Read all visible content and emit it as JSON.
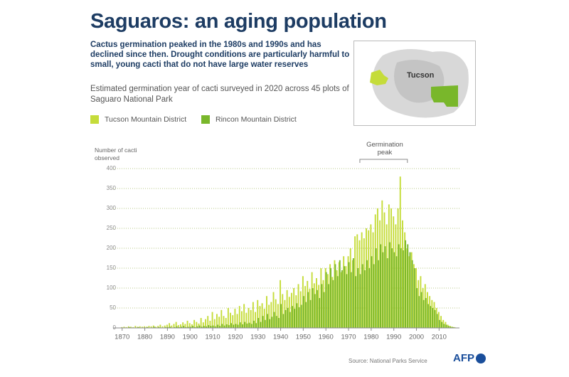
{
  "chart_data": {
    "type": "bar",
    "title": "Saguaros: an aging population",
    "subtitle": "Cactus germination peaked in the 1980s and 1990s and has declined since then. Drought conditions are particularly harmful to small, young cacti that do not have large water reserves",
    "description": "Estimated germination year of cacti surveyed in 2020 across 45 plots of Saguaro National Park",
    "y_label": "Number of cacti observed",
    "annotation": {
      "text": "Germination peak",
      "x": [
        1975,
        1996
      ]
    },
    "map_label": "Tucson",
    "source": "Source: National Parks Service",
    "credit": "AFP",
    "x": [
      1870,
      1871,
      1872,
      1873,
      1874,
      1875,
      1876,
      1877,
      1878,
      1879,
      1880,
      1881,
      1882,
      1883,
      1884,
      1885,
      1886,
      1887,
      1888,
      1889,
      1890,
      1891,
      1892,
      1893,
      1894,
      1895,
      1896,
      1897,
      1898,
      1899,
      1900,
      1901,
      1902,
      1903,
      1904,
      1905,
      1906,
      1907,
      1908,
      1909,
      1910,
      1911,
      1912,
      1913,
      1914,
      1915,
      1916,
      1917,
      1918,
      1919,
      1920,
      1921,
      1922,
      1923,
      1924,
      1925,
      1926,
      1927,
      1928,
      1929,
      1930,
      1931,
      1932,
      1933,
      1934,
      1935,
      1936,
      1937,
      1938,
      1939,
      1940,
      1941,
      1942,
      1943,
      1944,
      1945,
      1946,
      1947,
      1948,
      1949,
      1950,
      1951,
      1952,
      1953,
      1954,
      1955,
      1956,
      1957,
      1958,
      1959,
      1960,
      1961,
      1962,
      1963,
      1964,
      1965,
      1966,
      1967,
      1968,
      1969,
      1970,
      1971,
      1972,
      1973,
      1974,
      1975,
      1976,
      1977,
      1978,
      1979,
      1980,
      1981,
      1982,
      1983,
      1984,
      1985,
      1986,
      1987,
      1988,
      1989,
      1990,
      1991,
      1992,
      1993,
      1994,
      1995,
      1996,
      1997,
      1998,
      1999,
      2000,
      2001,
      2002,
      2003,
      2004,
      2005,
      2006,
      2007,
      2008,
      2009,
      2010,
      2011,
      2012,
      2013,
      2014,
      2015,
      2016,
      2017
    ],
    "series": [
      {
        "name": "Tucson Mountain District",
        "color": "#c5dc3a",
        "values": [
          2,
          3,
          2,
          4,
          3,
          2,
          5,
          3,
          4,
          3,
          4,
          3,
          5,
          4,
          6,
          3,
          5,
          8,
          4,
          6,
          8,
          12,
          6,
          10,
          15,
          7,
          9,
          14,
          10,
          18,
          12,
          9,
          20,
          15,
          11,
          25,
          14,
          22,
          30,
          18,
          40,
          22,
          35,
          28,
          45,
          30,
          25,
          50,
          38,
          32,
          48,
          35,
          55,
          42,
          60,
          38,
          50,
          45,
          65,
          40,
          70,
          55,
          62,
          48,
          80,
          58,
          65,
          90,
          72,
          60,
          120,
          85,
          70,
          95,
          78,
          88,
          100,
          82,
          110,
          92,
          130,
          105,
          118,
          98,
          140,
          112,
          125,
          108,
          150,
          120,
          150,
          135,
          160,
          128,
          170,
          145,
          165,
          140,
          180,
          155,
          180,
          200,
          170,
          230,
          235,
          220,
          240,
          225,
          250,
          245,
          260,
          240,
          285,
          300,
          270,
          320,
          290,
          260,
          310,
          300,
          280,
          260,
          300,
          380,
          270,
          240,
          200,
          180,
          190,
          160,
          150,
          120,
          130,
          100,
          110,
          90,
          80,
          70,
          65,
          50,
          40,
          30,
          20,
          15,
          8,
          5,
          3,
          2
        ]
      },
      {
        "name": "Rincon Mountain District",
        "color": "#79b72b",
        "values": [
          0,
          1,
          0,
          2,
          1,
          0,
          1,
          2,
          0,
          1,
          1,
          2,
          0,
          1,
          3,
          1,
          2,
          1,
          0,
          2,
          2,
          3,
          1,
          2,
          4,
          2,
          3,
          5,
          2,
          3,
          3,
          5,
          2,
          4,
          6,
          3,
          5,
          4,
          7,
          5,
          6,
          4,
          8,
          5,
          10,
          6,
          9,
          7,
          12,
          8,
          10,
          8,
          14,
          9,
          15,
          11,
          13,
          10,
          18,
          12,
          25,
          15,
          30,
          20,
          35,
          22,
          28,
          40,
          30,
          25,
          60,
          35,
          45,
          50,
          40,
          55,
          48,
          62,
          52,
          58,
          80,
          65,
          90,
          70,
          100,
          85,
          95,
          75,
          110,
          90,
          140,
          110,
          150,
          120,
          160,
          130,
          170,
          145,
          155,
          135,
          165,
          140,
          175,
          130,
          150,
          135,
          160,
          145,
          170,
          150,
          180,
          160,
          200,
          170,
          210,
          190,
          205,
          175,
          215,
          200,
          190,
          180,
          210,
          200,
          195,
          220,
          210,
          190,
          170,
          150,
          100,
          80,
          90,
          70,
          75,
          60,
          55,
          50,
          45,
          35,
          20,
          15,
          10,
          8,
          5,
          3,
          2,
          1
        ]
      }
    ],
    "xlim": [
      1866,
      2019
    ],
    "ylim": [
      0,
      400
    ],
    "xticks": [
      1870,
      1880,
      1890,
      1900,
      1910,
      1920,
      1930,
      1940,
      1950,
      1960,
      1970,
      1980,
      1990,
      2000,
      2010
    ],
    "yticks": [
      0,
      50,
      100,
      150,
      200,
      250,
      300,
      350,
      400
    ],
    "grid": true
  }
}
